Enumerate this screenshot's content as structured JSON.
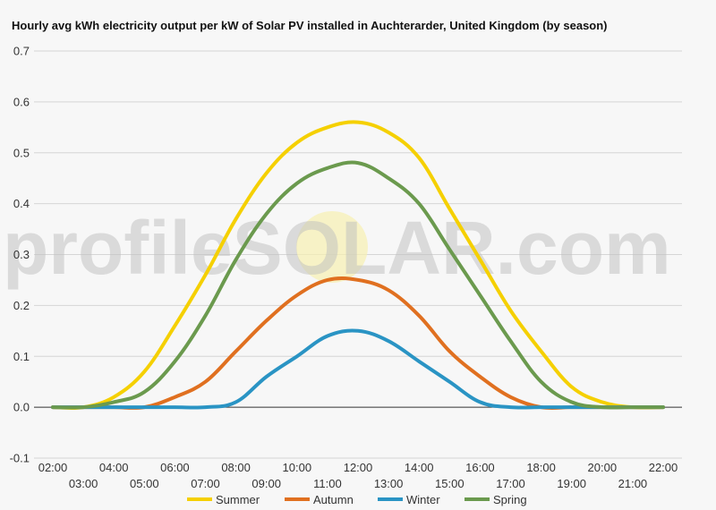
{
  "chart_data": {
    "type": "line",
    "title": "Hourly avg kWh electricity output per kW of Solar PV installed in Auchterarder, United Kingdom (by season)",
    "x": [
      "02:00",
      "03:00",
      "04:00",
      "05:00",
      "06:00",
      "07:00",
      "08:00",
      "09:00",
      "10:00",
      "11:00",
      "12:00",
      "13:00",
      "14:00",
      "15:00",
      "16:00",
      "17:00",
      "18:00",
      "19:00",
      "20:00",
      "21:00",
      "22:00"
    ],
    "series": [
      {
        "name": "Summer",
        "color": "#f5d000",
        "values": [
          0.0,
          0.0,
          0.02,
          0.07,
          0.16,
          0.26,
          0.37,
          0.46,
          0.52,
          0.55,
          0.56,
          0.54,
          0.49,
          0.39,
          0.29,
          0.19,
          0.11,
          0.04,
          0.01,
          0.0,
          0.0
        ]
      },
      {
        "name": "Autumn",
        "color": "#e07020",
        "values": [
          0.0,
          0.0,
          0.0,
          0.0,
          0.02,
          0.05,
          0.11,
          0.17,
          0.22,
          0.25,
          0.25,
          0.23,
          0.18,
          0.11,
          0.06,
          0.02,
          0.0,
          0.0,
          0.0,
          0.0,
          0.0
        ]
      },
      {
        "name": "Winter",
        "color": "#2a94c4",
        "values": [
          0.0,
          0.0,
          0.0,
          0.0,
          0.0,
          0.0,
          0.01,
          0.06,
          0.1,
          0.14,
          0.15,
          0.13,
          0.09,
          0.05,
          0.01,
          0.0,
          0.0,
          0.0,
          0.0,
          0.0,
          0.0
        ]
      },
      {
        "name": "Spring",
        "color": "#6b9a4e",
        "values": [
          0.0,
          0.0,
          0.01,
          0.03,
          0.09,
          0.18,
          0.29,
          0.38,
          0.44,
          0.47,
          0.48,
          0.45,
          0.4,
          0.31,
          0.22,
          0.13,
          0.05,
          0.01,
          0.0,
          0.0,
          0.0
        ]
      }
    ],
    "yticks": [
      "-0.1",
      "0.0",
      "0.1",
      "0.2",
      "0.3",
      "0.4",
      "0.5",
      "0.6",
      "0.7"
    ],
    "ylim": [
      -0.1,
      0.7
    ],
    "grid": true,
    "legend_position": "bottom",
    "watermark": "profileSOLAR.com"
  }
}
